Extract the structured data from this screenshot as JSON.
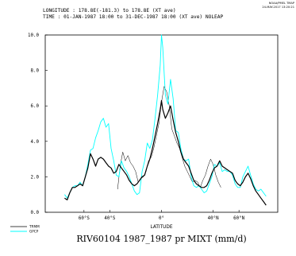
{
  "header": {
    "line1": "LONGITUDE : 178.8E(-181.3) to 178.8E (XT ave)",
    "line2": "TIME : 01-JAN-1987 18:00 to 31-DEC-1987 18:00 (XT ave) NOLEAP",
    "corner1": "NOAA/PMEL TMAP",
    "corner2": "24-MAY-2017 13:20:21"
  },
  "chart_data": {
    "type": "line",
    "title": "RIV60104 1987_1987 pr MIXT (mm/d)",
    "xlabel": "LATITUDE",
    "ylabel": "",
    "xlim": [
      -90,
      90
    ],
    "ylim": [
      0,
      10
    ],
    "xtick_values": [
      -60,
      -40,
      0,
      40,
      60
    ],
    "xtick_labels": [
      "60°S",
      "40°S",
      "0°",
      "40°N",
      "60°N"
    ],
    "ytick_values": [
      0,
      2,
      4,
      6,
      8,
      10
    ],
    "ytick_labels": [
      "0.0",
      "2.0",
      "4.0",
      "6.0",
      "8.0",
      "10.0"
    ],
    "grid": false,
    "legend_position": "bottom-left",
    "series": [
      {
        "name": "TRMM",
        "color": "#000000",
        "width": 0.5,
        "x": [
          -34,
          -32,
          -30,
          -28,
          -26,
          -24,
          -22,
          -20,
          -18,
          -16,
          -14,
          -12,
          -10,
          -8,
          -6,
          -4,
          -2,
          0,
          2,
          4,
          6,
          8,
          10,
          12,
          14,
          16,
          18,
          20,
          22,
          24,
          26,
          28,
          30,
          32,
          34,
          36,
          38,
          40,
          42,
          44,
          46
        ],
        "y": [
          1.3,
          2.6,
          3.4,
          2.9,
          3.2,
          2.8,
          2.6,
          2.3,
          1.7,
          1.9,
          2.0,
          2.3,
          2.9,
          3.1,
          3.6,
          4.3,
          5.0,
          6.2,
          7.1,
          6.8,
          6.0,
          4.7,
          4.3,
          3.9,
          3.6,
          3.1,
          2.6,
          2.3,
          2.0,
          1.7,
          1.8,
          1.7,
          1.4,
          1.8,
          2.1,
          2.6,
          3.0,
          2.7,
          2.1,
          1.7,
          1.4
        ]
      },
      {
        "name": "GPCP",
        "color": "#00ffff",
        "width": 0.9,
        "x": [
          -75,
          -73,
          -71,
          -69,
          -67,
          -65,
          -63,
          -61,
          -59,
          -57,
          -55,
          -53,
          -51,
          -49,
          -47,
          -45,
          -43,
          -41,
          -39,
          -37,
          -35,
          -33,
          -31,
          -29,
          -27,
          -25,
          -23,
          -21,
          -19,
          -17,
          -15,
          -13,
          -11,
          -9,
          -7,
          -5,
          -3,
          -1,
          0,
          1,
          3,
          5,
          7,
          9,
          11,
          13,
          15,
          17,
          19,
          21,
          23,
          25,
          27,
          29,
          31,
          33,
          35,
          37,
          39,
          41,
          43,
          45,
          47,
          49,
          51,
          53,
          55,
          57,
          59,
          61,
          63,
          65,
          67,
          69,
          71,
          73,
          75,
          77,
          79,
          81
        ],
        "y": [
          1.0,
          0.8,
          1.1,
          1.4,
          1.5,
          1.5,
          1.7,
          1.5,
          2.0,
          2.7,
          3.5,
          3.6,
          4.2,
          4.6,
          5.1,
          5.3,
          4.8,
          5.0,
          3.6,
          2.9,
          2.1,
          2.0,
          2.9,
          2.5,
          2.3,
          2.0,
          1.6,
          1.2,
          1.0,
          1.1,
          2.3,
          2.9,
          3.9,
          3.6,
          4.1,
          5.3,
          6.6,
          8.3,
          10.0,
          9.3,
          6.6,
          6.1,
          7.5,
          6.4,
          4.6,
          4.5,
          3.6,
          3.0,
          2.9,
          3.0,
          2.0,
          1.5,
          1.4,
          1.5,
          1.3,
          1.1,
          1.2,
          1.6,
          2.0,
          2.7,
          2.6,
          2.8,
          2.3,
          2.4,
          2.3,
          2.3,
          2.1,
          1.6,
          1.4,
          1.4,
          2.0,
          2.3,
          2.6,
          2.1,
          1.6,
          1.3,
          1.2,
          1.3,
          1.1,
          0.9
        ]
      },
      {
        "name": "",
        "color": "#000000",
        "width": 1.2,
        "x": [
          -75,
          -73,
          -71,
          -69,
          -67,
          -65,
          -63,
          -61,
          -59,
          -57,
          -55,
          -53,
          -51,
          -49,
          -47,
          -45,
          -43,
          -41,
          -39,
          -37,
          -35,
          -33,
          -31,
          -29,
          -27,
          -25,
          -23,
          -21,
          -19,
          -17,
          -15,
          -13,
          -11,
          -9,
          -7,
          -5,
          -3,
          -1,
          0,
          1,
          3,
          5,
          7,
          9,
          11,
          13,
          15,
          17,
          19,
          21,
          23,
          25,
          27,
          29,
          31,
          33,
          35,
          37,
          39,
          41,
          43,
          45,
          47,
          49,
          51,
          53,
          55,
          57,
          59,
          61,
          63,
          65,
          67,
          69,
          71,
          73,
          75,
          77,
          79,
          81
        ],
        "y": [
          0.8,
          0.7,
          1.1,
          1.4,
          1.4,
          1.5,
          1.6,
          1.5,
          2.0,
          2.5,
          3.3,
          3.0,
          2.6,
          3.0,
          3.1,
          3.0,
          2.8,
          2.6,
          2.5,
          2.2,
          2.3,
          2.7,
          2.5,
          2.3,
          2.1,
          1.8,
          1.6,
          1.5,
          1.6,
          1.8,
          2.0,
          2.1,
          2.6,
          3.0,
          3.6,
          4.3,
          5.0,
          5.8,
          6.3,
          5.8,
          5.3,
          5.6,
          6.0,
          5.2,
          4.5,
          4.0,
          3.4,
          3.0,
          2.8,
          2.6,
          2.2,
          1.8,
          1.6,
          1.5,
          1.4,
          1.4,
          1.5,
          1.8,
          2.2,
          2.5,
          2.6,
          2.9,
          2.6,
          2.5,
          2.4,
          2.3,
          2.2,
          1.8,
          1.6,
          1.5,
          1.7,
          2.0,
          2.2,
          1.9,
          1.5,
          1.2,
          1.0,
          0.8,
          0.6,
          0.4
        ]
      }
    ]
  }
}
